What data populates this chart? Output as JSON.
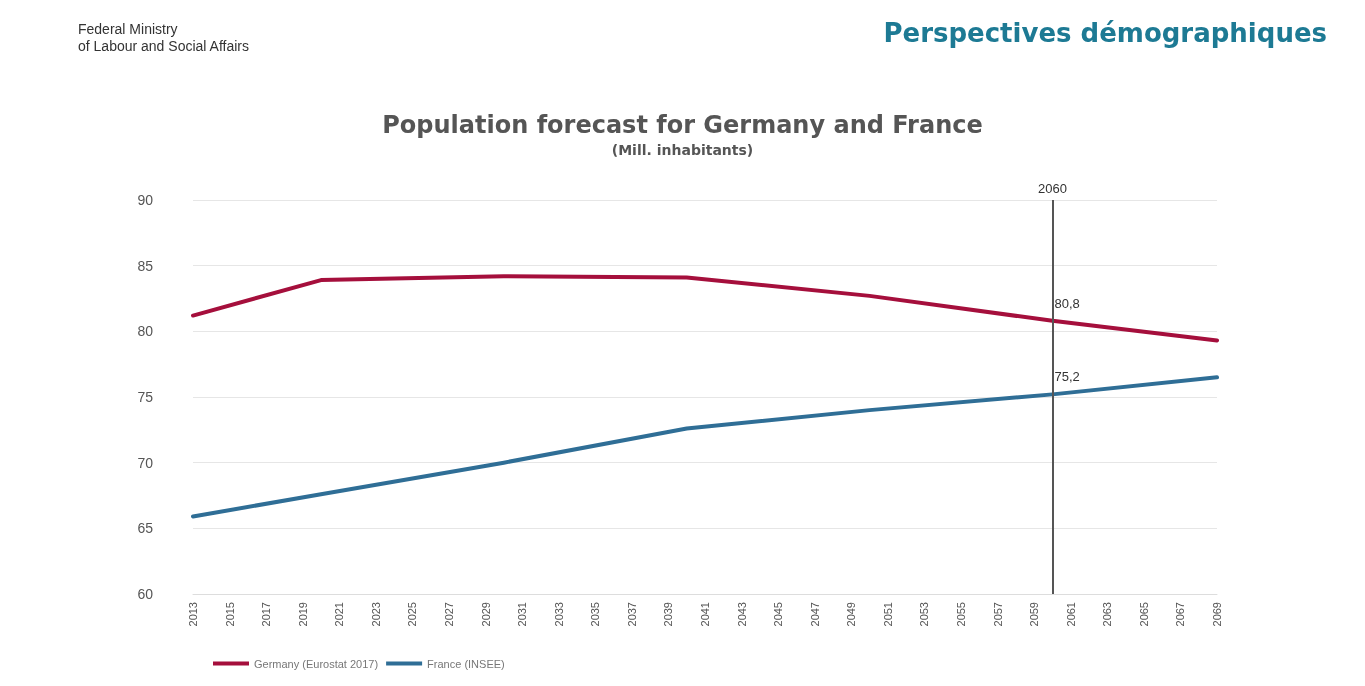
{
  "chart_data": {
    "type": "line",
    "title": "Population forecast for Germany and France",
    "subtitle": "(Mill. inhabitants)",
    "annotations": [
      "Federal Ministry\nof Labour and Social Affairs",
      "Perspectives démographiques",
      {
        "text": "80,8",
        "x": 2060,
        "y": 80.8
      },
      {
        "text": "75,2",
        "x": 2060,
        "y": 75.2
      }
    ],
    "series": [
      {
        "name": "Germany (Eurostat 2017)",
        "color": "#a50f3c",
        "x": [
          2013,
          2020,
          2030,
          2040,
          2050,
          2060,
          2069
        ],
        "values": [
          81.2,
          83.9,
          84.2,
          84.1,
          82.7,
          80.8,
          79.3
        ]
      },
      {
        "name": "France (INSEE)",
        "color": "#2f6e96",
        "x": [
          2013,
          2020,
          2030,
          2040,
          2050,
          2060,
          2069
        ],
        "values": [
          65.9,
          67.6,
          70.0,
          72.6,
          74.0,
          75.2,
          76.5
        ]
      }
    ],
    "xlim": [
      2013,
      2069
    ],
    "xticks": [
      2013,
      2015,
      2017,
      2019,
      2021,
      2023,
      2025,
      2027,
      2029,
      2031,
      2033,
      2035,
      2037,
      2039,
      2041,
      2043,
      2045,
      2047,
      2049,
      2051,
      2053,
      2055,
      2057,
      2059,
      2061,
      2063,
      2065,
      2067,
      2069
    ],
    "ylim": [
      60,
      90
    ],
    "yticks": [
      60,
      65,
      70,
      75,
      80,
      85,
      90
    ],
    "ref_lines": [
      {
        "axis": "x",
        "value": 2060,
        "label": "2060",
        "color": "#555555"
      }
    ],
    "grid": "y",
    "legend": "bottom left",
    "marker": "none",
    "line_style": "solid"
  }
}
